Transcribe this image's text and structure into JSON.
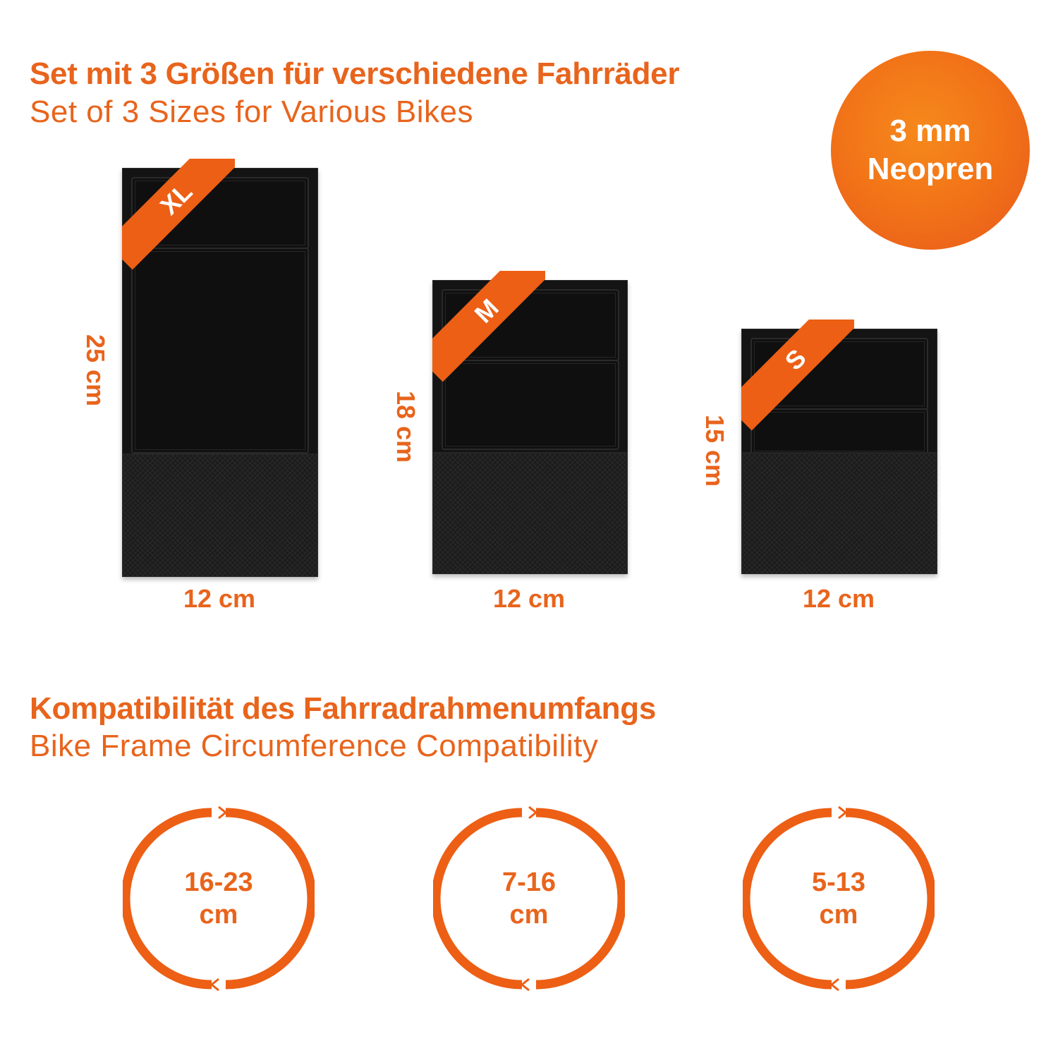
{
  "header": {
    "title_de": "Set mit 3 Größen für verschiedene Fahrräder",
    "title_en": "Set of 3 Sizes for Various Bikes"
  },
  "badge": {
    "line1": "3 mm",
    "line2": "Neopren"
  },
  "sizes": [
    {
      "label": "XL",
      "height": "25 cm",
      "width": "12 cm"
    },
    {
      "label": "M",
      "height": "18 cm",
      "width": "12 cm"
    },
    {
      "label": "S",
      "height": "15 cm",
      "width": "12 cm"
    }
  ],
  "compat": {
    "title_de": "Kompatibilität des Fahrradrahmenumfangs",
    "title_en": "Bike Frame Circumference Compatibility",
    "items": [
      {
        "range": "16-23",
        "unit": "cm"
      },
      {
        "range": "7-16",
        "unit": "cm"
      },
      {
        "range": "5-13",
        "unit": "cm"
      }
    ]
  },
  "colors": {
    "accent": "#e8641c",
    "ribbon": "#ec5f15",
    "pad": "#141414"
  }
}
